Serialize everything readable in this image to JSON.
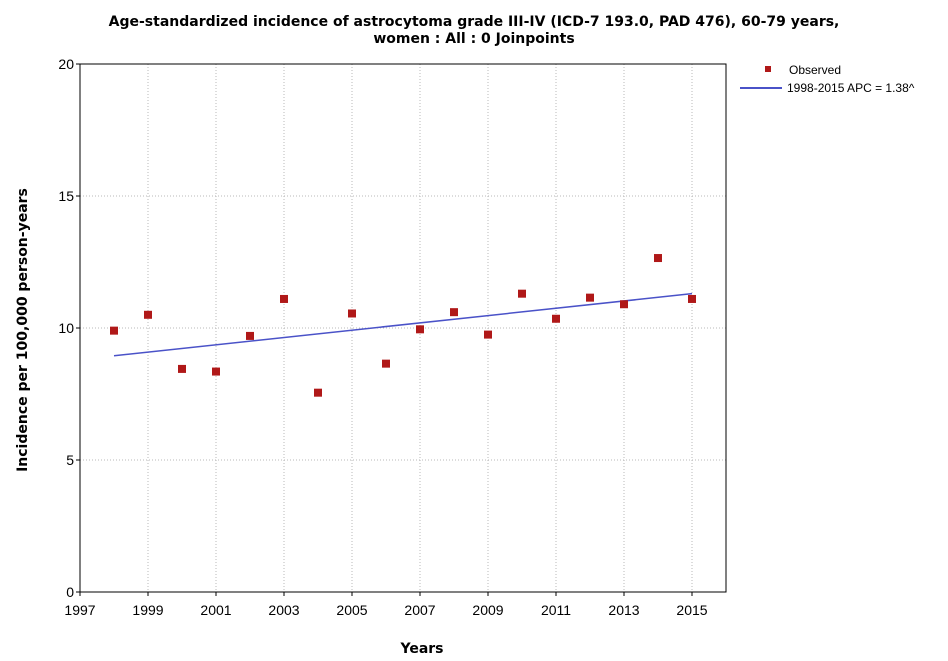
{
  "chart_data": {
    "type": "scatter",
    "title_line1": "Age-standardized incidence of astrocytoma grade III-IV (ICD-7 193.0, PAD 476), 60-79 years,",
    "title_line2": "women : All : 0 Joinpoints",
    "xlabel": "Years",
    "ylabel": "Incidence per 100,000 person-years",
    "xlim": [
      1997,
      2016
    ],
    "ylim": [
      0,
      20
    ],
    "x_ticks": [
      "1997",
      "1999",
      "2001",
      "2003",
      "2005",
      "2007",
      "2009",
      "2011",
      "2013",
      "2015"
    ],
    "y_ticks": [
      "0",
      "5",
      "10",
      "15",
      "20"
    ],
    "grid": true,
    "legend_position": "top-right outside",
    "series": [
      {
        "name": "Observed",
        "kind": "points",
        "color": "#b01818",
        "x": [
          1998,
          1999,
          2000,
          2001,
          2002,
          2003,
          2004,
          2005,
          2006,
          2007,
          2008,
          2009,
          2010,
          2011,
          2012,
          2013,
          2014,
          2015
        ],
        "y": [
          9.9,
          10.5,
          8.45,
          8.35,
          9.7,
          11.1,
          7.55,
          10.55,
          8.65,
          9.95,
          10.6,
          9.75,
          11.3,
          10.35,
          11.15,
          10.9,
          12.65,
          11.1
        ]
      },
      {
        "name": "1998-2015 APC  = 1.38^",
        "kind": "line",
        "color": "#4a52c8",
        "x": [
          1998,
          2015
        ],
        "y": [
          8.95,
          11.3
        ]
      }
    ]
  }
}
